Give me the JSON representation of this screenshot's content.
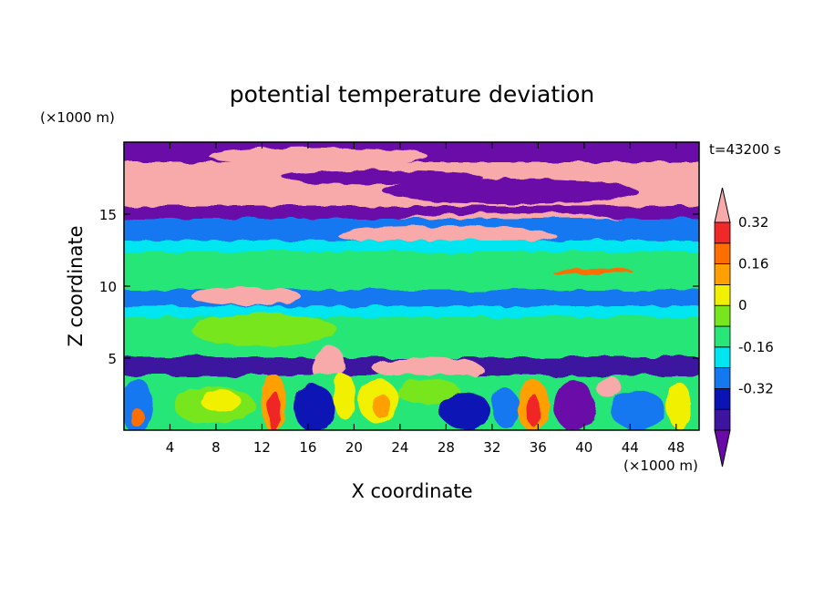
{
  "chart_data": {
    "type": "heatmap",
    "title": "potential temperature deviation",
    "xlabel": "X coordinate",
    "ylabel": "Z coordinate",
    "x_unit": "(×1000 m)",
    "y_unit": "(×1000 m)",
    "time_label": "t=43200 s",
    "xlim": [
      0,
      50
    ],
    "ylim": [
      0,
      20
    ],
    "x_ticks": [
      4,
      8,
      12,
      16,
      20,
      24,
      28,
      32,
      36,
      40,
      44,
      48
    ],
    "y_ticks": [
      5,
      10,
      15
    ],
    "colorbar": {
      "levels": [
        -0.4,
        -0.32,
        -0.24,
        -0.16,
        -0.08,
        0,
        0.08,
        0.16,
        0.24,
        0.32,
        0.4
      ],
      "colors": [
        "#6a0aa8",
        "#3c14a0",
        "#0a14b4",
        "#1478f0",
        "#00e6f0",
        "#28e678",
        "#78e61e",
        "#f0f000",
        "#ffa000",
        "#ff6e00",
        "#f02828",
        "#f8aaaa"
      ],
      "tick_labels": [
        "0.32",
        "0.16",
        "0",
        "-0.16",
        "-0.32"
      ],
      "extend": "both"
    },
    "layers": [
      {
        "z_range": [
          18,
          20
        ],
        "value": "-0.4"
      },
      {
        "z_range": [
          16.2,
          18
        ],
        "value": "0.4 (upper band with embedded negative lenses)"
      },
      {
        "z_range": [
          15,
          16.2
        ],
        "value": "-0.4"
      },
      {
        "z_range": [
          13,
          15
        ],
        "value": "-0.16 to -0.32"
      },
      {
        "z_range": [
          9,
          13
        ],
        "value": "-0.08 to 0"
      },
      {
        "z_range": [
          8,
          9.5
        ],
        "value": "-0.16"
      },
      {
        "z_range": [
          5,
          8
        ],
        "value": "0"
      },
      {
        "z_range": [
          4.3,
          5
        ],
        "value": "-0.32 to -0.4"
      },
      {
        "z_range": [
          0,
          4.3
        ],
        "value": "-0.4 to 0.4 (convective cells)"
      }
    ]
  }
}
